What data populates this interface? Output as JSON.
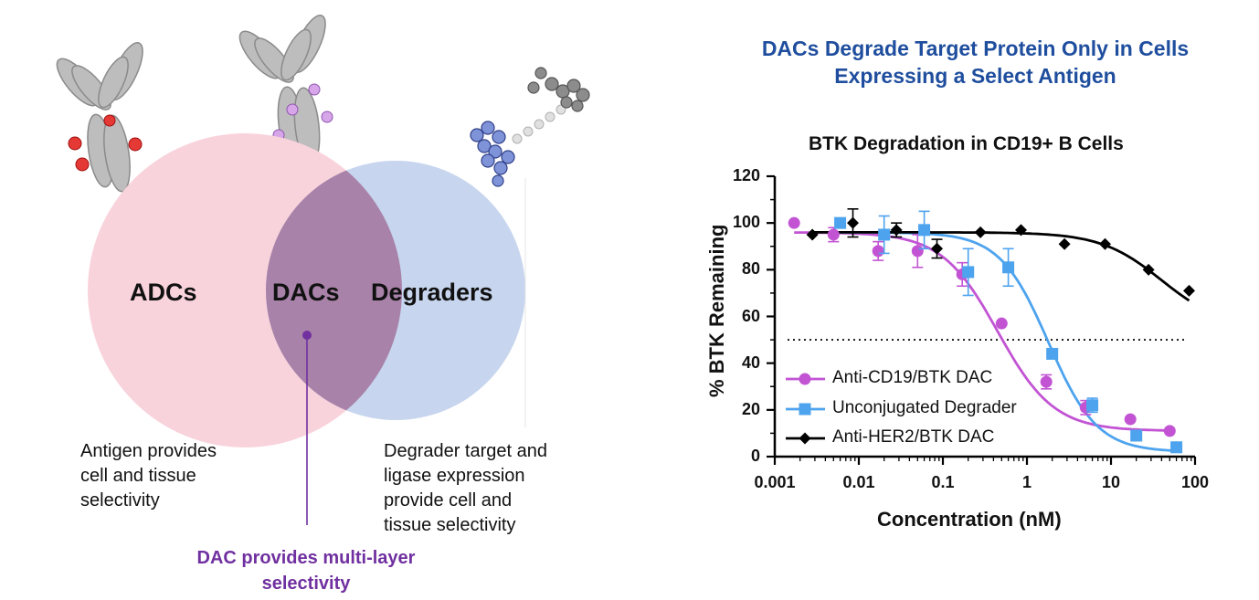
{
  "venn": {
    "left_label": "ADCs",
    "middle_label": "DACs",
    "right_label": "Degraders",
    "left_caption": [
      "Antigen provides",
      "cell and tissue",
      "selectivity"
    ],
    "right_caption": [
      "Degrader target and",
      "ligase expression",
      "provide cell and",
      "tissue selectivity"
    ],
    "bottom_caption": [
      "DAC provides multi-layer",
      "selectivity"
    ],
    "colors": {
      "left": "#f9d3dc",
      "right": "#c7d5ee",
      "overlap": "#a882a8",
      "accent": "#7030a0"
    }
  },
  "main_title": [
    "DACs Degrade Target Protein Only in Cells",
    "Expressing a Select Antigen"
  ],
  "chart_data": {
    "type": "scatter",
    "title": "BTK Degradation in CD19+ B Cells",
    "xlabel": "Concentration  (nM)",
    "ylabel": "% BTK Remaining",
    "xscale": "log",
    "xlim": [
      0.001,
      100
    ],
    "ylim": [
      0,
      120
    ],
    "xticks": [
      0.001,
      0.01,
      0.1,
      1,
      10,
      100
    ],
    "xtick_labels": [
      "0.001",
      "0.01",
      "0.1",
      "1",
      "10",
      "100"
    ],
    "yticks": [
      0,
      20,
      40,
      60,
      80,
      100,
      120
    ],
    "ytick_labels": [
      "0",
      "20",
      "40",
      "60",
      "80",
      "100",
      "120"
    ],
    "reference_line": 50,
    "legend_position": "bottom-left",
    "series": [
      {
        "name": "Anti-CD19/BTK  DAC",
        "color": "#c254d4",
        "marker": "circle",
        "x": [
          0.0017,
          0.005,
          0.017,
          0.05,
          0.17,
          0.5,
          1.7,
          5,
          17,
          50
        ],
        "y": [
          100,
          95,
          88,
          88,
          78,
          57,
          32,
          21,
          16,
          11
        ],
        "err": [
          0,
          3,
          4,
          7,
          5,
          0,
          3,
          3,
          0,
          0
        ],
        "fit": {
          "top": 96,
          "bottom": 11,
          "ec50": 0.45,
          "hill": 1.3
        }
      },
      {
        "name": "Unconjugated Degrader",
        "color": "#4da3ee",
        "marker": "square",
        "x": [
          0.006,
          0.02,
          0.06,
          0.2,
          0.6,
          2,
          6,
          20,
          60
        ],
        "y": [
          100,
          95,
          97,
          79,
          81,
          44,
          22,
          9,
          4
        ],
        "err": [
          0,
          8,
          8,
          10,
          8,
          0,
          3,
          0,
          0
        ],
        "fit": {
          "top": 96,
          "bottom": 2,
          "ec50": 1.8,
          "hill": 1.5
        }
      },
      {
        "name": "Anti-HER2/BTK DAC",
        "color": "#000000",
        "marker": "diamond",
        "x": [
          0.0028,
          0.0085,
          0.028,
          0.085,
          0.28,
          0.85,
          2.8,
          8.5,
          28,
          85
        ],
        "y": [
          95,
          100,
          97,
          89,
          96,
          97,
          91,
          91,
          80,
          71
        ],
        "err": [
          0,
          6,
          3,
          4,
          0,
          0,
          0,
          0,
          0,
          0
        ],
        "fit": {
          "top": 96,
          "bottom": 55,
          "ec50": 40,
          "hill": 1.2
        }
      }
    ]
  }
}
